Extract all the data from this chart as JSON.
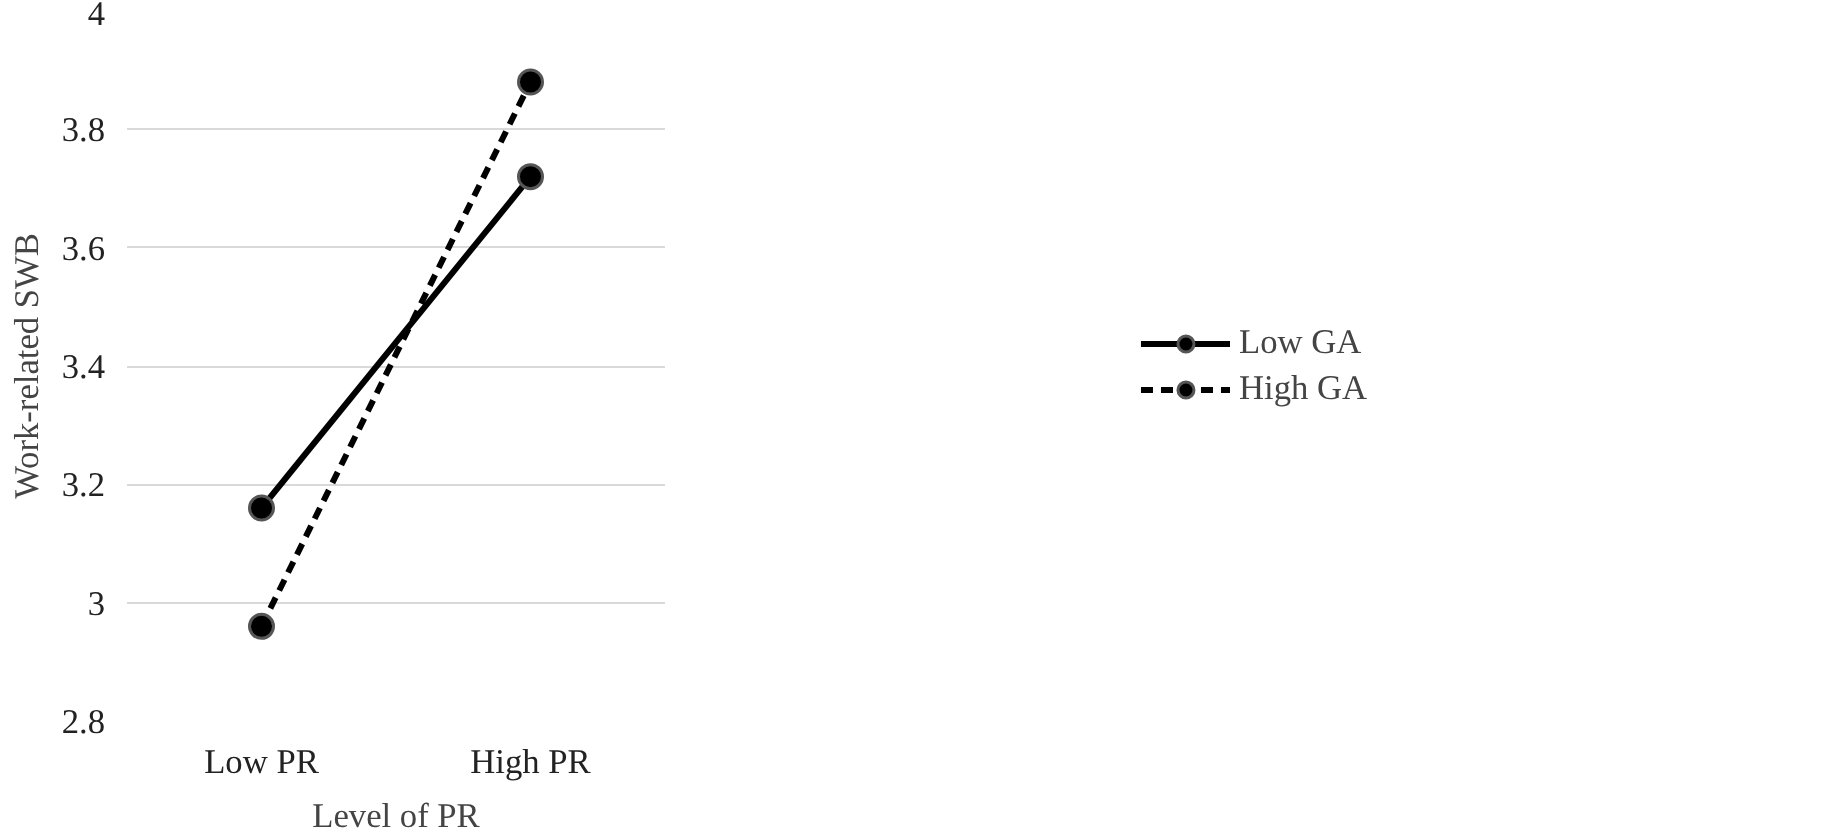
{
  "chart_data": {
    "type": "line",
    "xlabel": "Level of PR",
    "ylabel": "Work-related SWB",
    "categories": [
      "Low PR",
      "High PR"
    ],
    "series": [
      {
        "name": "Low GA",
        "color": "#000000",
        "values": [
          3.16,
          3.72
        ],
        "line_style": "solid"
      },
      {
        "name": "High GA",
        "color": "#000000",
        "values": [
          2.96,
          3.88
        ],
        "line_style": "dashed"
      }
    ],
    "ylim": [
      2.8,
      4
    ],
    "yticks": [
      2.8,
      3,
      3.2,
      3.4,
      3.6,
      3.8,
      4
    ],
    "grid": "y",
    "legend": "right",
    "marker": "circle"
  }
}
